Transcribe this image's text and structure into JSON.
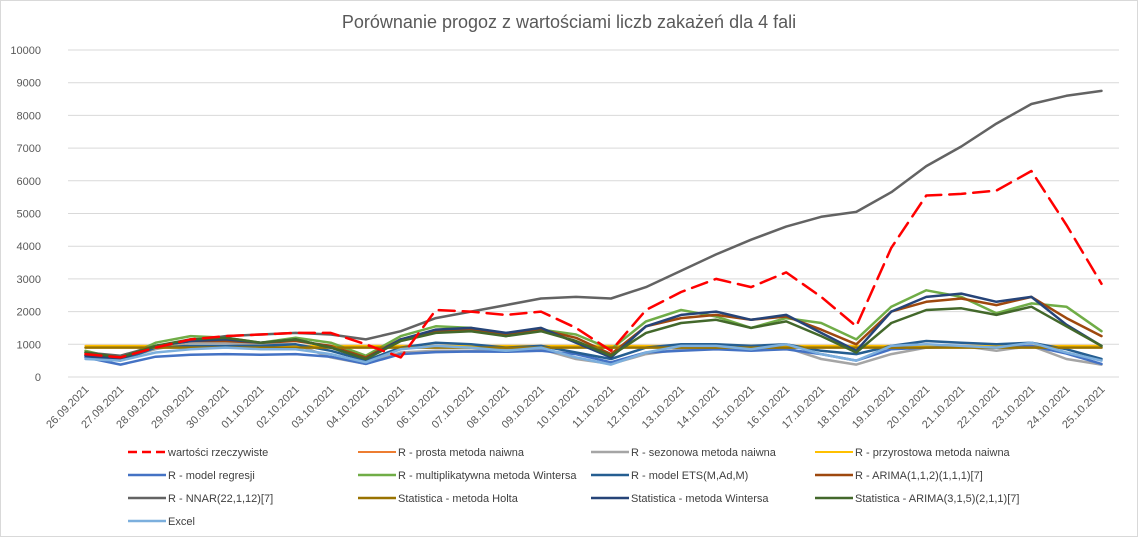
{
  "chart_data": {
    "type": "line",
    "title": "Porównanie progoz z wartościami liczb zakażeń dla 4 fali",
    "xlabel": "",
    "ylabel": "",
    "ylim": [
      0,
      10000
    ],
    "yticks": [
      0,
      1000,
      2000,
      3000,
      4000,
      5000,
      6000,
      7000,
      8000,
      9000,
      10000
    ],
    "grid": true,
    "legend_position": "bottom",
    "categories": [
      "26.09.2021",
      "27.09.2021",
      "28.09.2021",
      "29.09.2021",
      "30.09.2021",
      "01.10.2021",
      "02.10.2021",
      "03.10.2021",
      "04.10.2021",
      "05.10.2021",
      "06.10.2021",
      "07.10.2021",
      "08.10.2021",
      "09.10.2021",
      "10.10.2021",
      "11.10.2021",
      "12.10.2021",
      "13.10.2021",
      "14.10.2021",
      "15.10.2021",
      "16.10.2021",
      "17.10.2021",
      "18.10.2021",
      "19.10.2021",
      "20.10.2021",
      "21.10.2021",
      "22.10.2021",
      "23.10.2021",
      "24.10.2021",
      "25.10.2021"
    ],
    "series": [
      {
        "name": "wartości rzeczywiste",
        "color": "#ff0000",
        "dash": true,
        "width": 2.5,
        "values": [
          700,
          600,
          900,
          1150,
          1250,
          1300,
          1350,
          1350,
          1000,
          600,
          2050,
          2000,
          1900,
          2000,
          1500,
          800,
          2050,
          2600,
          3000,
          2750,
          3200,
          2450,
          1550,
          3950,
          5550,
          5600,
          5700,
          6300,
          4650,
          2850
        ]
      },
      {
        "name": "R - prosta metoda naiwna",
        "color": "#ed7d31",
        "dash": false,
        "width": 2,
        "values": [
          950,
          950,
          950,
          950,
          950,
          950,
          950,
          950,
          950,
          950,
          950,
          950,
          950,
          950,
          950,
          950,
          950,
          950,
          950,
          950,
          950,
          950,
          950,
          950,
          950,
          950,
          950,
          950,
          950,
          950
        ]
      },
      {
        "name": "R - sezonowa metoda naiwna",
        "color": "#a5a5a5",
        "dash": false,
        "width": 2.5,
        "values": [
          650,
          550,
          850,
          1050,
          1050,
          1000,
          1000,
          600,
          400,
          750,
          800,
          800,
          850,
          850,
          550,
          400,
          700,
          850,
          900,
          850,
          900,
          550,
          380,
          700,
          900,
          950,
          800,
          950,
          550,
          380
        ]
      },
      {
        "name": "R - przyrostowa metoda naiwna",
        "color": "#ffc000",
        "dash": false,
        "width": 2,
        "values": [
          950,
          950,
          950,
          950,
          950,
          950,
          950,
          950,
          950,
          950,
          950,
          950,
          950,
          950,
          950,
          950,
          950,
          950,
          950,
          950,
          950,
          950,
          950,
          950,
          950,
          950,
          950,
          950,
          950,
          950
        ]
      },
      {
        "name": "R - model regresji",
        "color": "#4472c4",
        "dash": false,
        "width": 2.5,
        "values": [
          600,
          380,
          620,
          680,
          700,
          680,
          700,
          620,
          400,
          700,
          760,
          780,
          770,
          800,
          700,
          450,
          750,
          800,
          850,
          800,
          850,
          700,
          500,
          850,
          900,
          920,
          900,
          950,
          720,
          400
        ]
      },
      {
        "name": "R - multiplikatywna metoda Wintersa",
        "color": "#70ad47",
        "dash": false,
        "width": 2.5,
        "values": [
          800,
          550,
          1050,
          1250,
          1200,
          1050,
          1200,
          1050,
          650,
          1250,
          1550,
          1500,
          1250,
          1450,
          1300,
          850,
          1700,
          2050,
          1850,
          1500,
          1800,
          1650,
          1150,
          2150,
          2650,
          2450,
          1950,
          2250,
          2150,
          1400
        ]
      },
      {
        "name": "R - model ETS(M,Ad,M)",
        "color": "#255e91",
        "dash": false,
        "width": 2.5,
        "values": [
          650,
          500,
          900,
          950,
          950,
          950,
          1000,
          800,
          500,
          900,
          1050,
          1000,
          900,
          950,
          750,
          550,
          900,
          1000,
          1000,
          950,
          1000,
          800,
          700,
          950,
          1100,
          1050,
          1000,
          1050,
          850,
          550
        ]
      },
      {
        "name": "R - ARIMA(1,1,2)(1,1,1)[7]",
        "color": "#9e480e",
        "dash": false,
        "width": 2.5,
        "values": [
          700,
          550,
          950,
          1100,
          1100,
          1050,
          1100,
          950,
          600,
          1150,
          1400,
          1450,
          1300,
          1450,
          1200,
          700,
          1550,
          1800,
          1900,
          1750,
          1850,
          1450,
          1000,
          2000,
          2300,
          2400,
          2200,
          2450,
          1800,
          1250
        ]
      },
      {
        "name": "R - NNAR(22,1,12)[7]",
        "color": "#636363",
        "dash": false,
        "width": 2.5,
        "values": [
          750,
          650,
          950,
          1100,
          1250,
          1300,
          1350,
          1300,
          1150,
          1400,
          1800,
          2000,
          2200,
          2400,
          2450,
          2400,
          2750,
          3250,
          3750,
          4200,
          4600,
          4900,
          5050,
          5650,
          6450,
          7050,
          7750,
          8350,
          8600,
          8750
        ]
      },
      {
        "name": "Statistica - metoda Holta",
        "color": "#997300",
        "dash": false,
        "width": 2.5,
        "values": [
          900,
          900,
          900,
          900,
          900,
          900,
          900,
          900,
          900,
          900,
          900,
          900,
          900,
          900,
          900,
          900,
          900,
          900,
          900,
          900,
          900,
          900,
          900,
          900,
          900,
          900,
          900,
          900,
          900,
          900
        ]
      },
      {
        "name": "Statistica - metoda Wintersa",
        "color": "#264478",
        "dash": false,
        "width": 2.5,
        "values": [
          650,
          550,
          950,
          1100,
          1150,
          1050,
          1150,
          900,
          550,
          1150,
          1450,
          1500,
          1350,
          1500,
          1050,
          600,
          1550,
          1900,
          2000,
          1750,
          1900,
          1350,
          800,
          2000,
          2450,
          2550,
          2300,
          2450,
          1600,
          950
        ]
      },
      {
        "name": "Statistica - ARIMA(3,1,5)(2,1,1)[7]",
        "color": "#43682b",
        "dash": false,
        "width": 2.5,
        "values": [
          750,
          600,
          950,
          1150,
          1200,
          1050,
          1150,
          900,
          550,
          1100,
          1350,
          1400,
          1250,
          1400,
          1100,
          650,
          1350,
          1650,
          1750,
          1500,
          1700,
          1250,
          750,
          1650,
          2050,
          2100,
          1900,
          2150,
          1550,
          950
        ]
      },
      {
        "name": "Excel",
        "color": "#7cafdd",
        "dash": false,
        "width": 2.5,
        "values": [
          550,
          500,
          750,
          850,
          900,
          850,
          850,
          700,
          450,
          850,
          950,
          900,
          800,
          900,
          600,
          380,
          750,
          950,
          950,
          850,
          1000,
          700,
          500,
          950,
          1000,
          950,
          900,
          1050,
          750,
          500
        ]
      }
    ]
  }
}
